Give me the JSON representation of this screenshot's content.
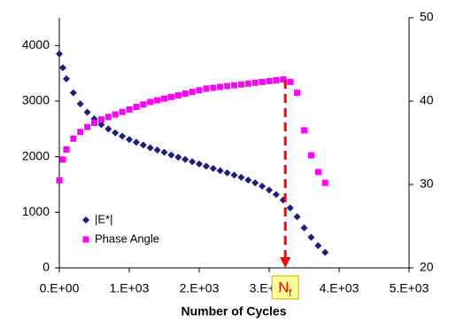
{
  "chart_data": {
    "type": "scatter",
    "x_label": "Number of Cycles",
    "x": [
      0,
      50,
      100,
      200,
      300,
      400,
      500,
      600,
      700,
      800,
      900,
      1000,
      1100,
      1200,
      1300,
      1400,
      1500,
      1600,
      1700,
      1800,
      1900,
      2000,
      2100,
      2200,
      2300,
      2400,
      2500,
      2600,
      2700,
      2800,
      2900,
      3000,
      3100,
      3200,
      3300,
      3400,
      3500,
      3600,
      3700,
      3800
    ],
    "series": [
      {
        "name": "|E*|",
        "color": "#1c1c80",
        "marker": "diamond",
        "axis": "y",
        "values": [
          3850,
          3600,
          3400,
          3150,
          2950,
          2800,
          2680,
          2580,
          2500,
          2430,
          2370,
          2310,
          2260,
          2210,
          2160,
          2120,
          2080,
          2030,
          1990,
          1950,
          1910,
          1870,
          1830,
          1790,
          1750,
          1710,
          1670,
          1630,
          1580,
          1530,
          1470,
          1400,
          1320,
          1220,
          1080,
          920,
          720,
          550,
          400,
          280
        ]
      },
      {
        "name": "Phase Angle",
        "color": "#ff00ff",
        "marker": "square",
        "axis": "y2",
        "values": [
          30.5,
          33,
          34.2,
          35.5,
          36.3,
          36.9,
          37.4,
          37.8,
          38.1,
          38.4,
          38.7,
          39,
          39.3,
          39.6,
          39.9,
          40.1,
          40.3,
          40.5,
          40.7,
          40.9,
          41.1,
          41.3,
          41.5,
          41.6,
          41.7,
          41.8,
          41.9,
          42,
          42.1,
          42.2,
          42.3,
          42.4,
          42.5,
          42.6,
          42.3,
          41,
          36.5,
          33.5,
          31.5,
          30.2
        ]
      }
    ],
    "xlim": [
      0,
      5000
    ],
    "xticks": [
      {
        "value": 0,
        "label": "0.E+00"
      },
      {
        "value": 1000,
        "label": "1.E+03"
      },
      {
        "value": 2000,
        "label": "2.E+03"
      },
      {
        "value": 3000,
        "label": "3.E+03"
      },
      {
        "value": 4000,
        "label": "4.E+03"
      },
      {
        "value": 5000,
        "label": "5.E+03"
      }
    ],
    "ylim": [
      0,
      4500
    ],
    "yticks": [
      0,
      1000,
      2000,
      3000,
      4000
    ],
    "y2lim": [
      20,
      50
    ],
    "y2ticks": [
      20,
      30,
      40,
      50
    ],
    "legend": "lower left",
    "annotation": {
      "text": "N",
      "subscript": "f",
      "x": 3230,
      "color": "#ff0000"
    }
  }
}
